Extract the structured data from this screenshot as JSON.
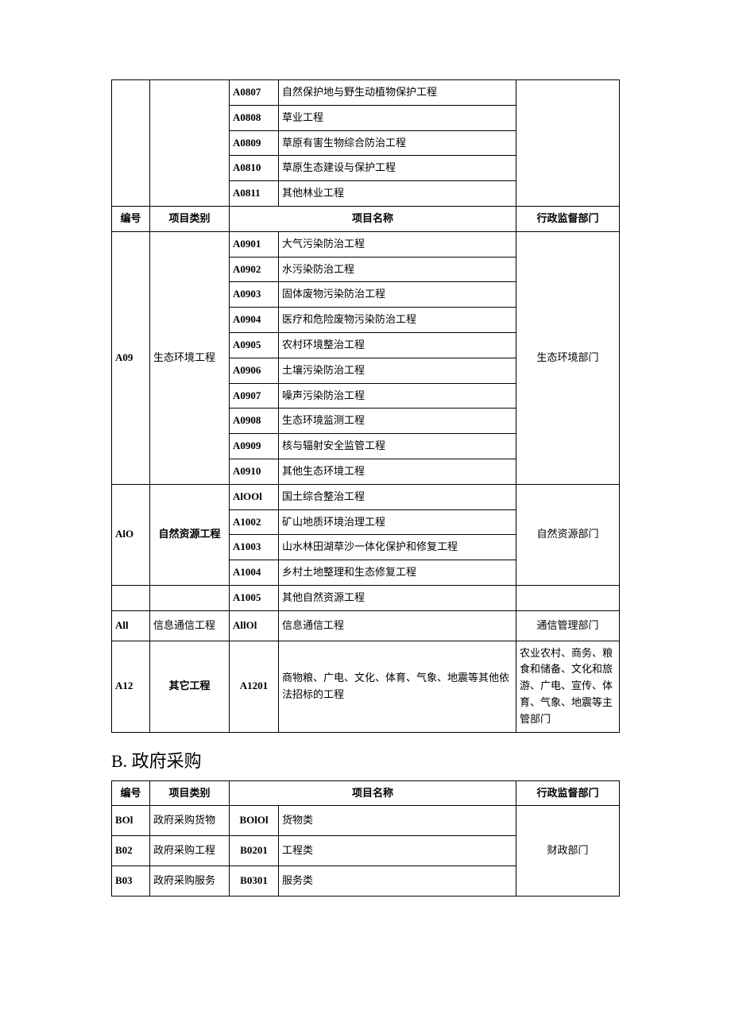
{
  "tableA_top": {
    "rows": [
      {
        "sub": "A0807",
        "name": "自然保护地与野生动植物保护工程"
      },
      {
        "sub": "A0808",
        "name": "草业工程"
      },
      {
        "sub": "A0809",
        "name": "草原有害生物综合防治工程"
      },
      {
        "sub": "A0810",
        "name": "草原生态建设与保护工程"
      },
      {
        "sub": "A0811",
        "name": "其他林业工程"
      }
    ]
  },
  "headerA": {
    "col1": "编号",
    "col2": "项目类别",
    "col3": "项目名称",
    "col4": "行政监督部门"
  },
  "a09": {
    "code": "A09",
    "cat": "生态环境工程",
    "dept": "生态环境部门",
    "rows": [
      {
        "sub": "A0901",
        "name": "大气污染防治工程"
      },
      {
        "sub": "A0902",
        "name": "水污染防治工程"
      },
      {
        "sub": "A0903",
        "name": "固体废物污染防治工程"
      },
      {
        "sub": "A0904",
        "name": "医疗和危险废物污染防治工程"
      },
      {
        "sub": "A0905",
        "name": "农村环境整治工程"
      },
      {
        "sub": "A0906",
        "name": "土壤污染防治工程"
      },
      {
        "sub": "A0907",
        "name": "噪声污染防治工程"
      },
      {
        "sub": "A0908",
        "name": "生态环境监测工程"
      },
      {
        "sub": "A0909",
        "name": "核与辐射安全监管工程"
      },
      {
        "sub": "A0910",
        "name": "其他生态环境工程"
      }
    ]
  },
  "a10": {
    "code": "AlO",
    "cat": "自然资源工程",
    "dept": "自然资源部门",
    "rows": [
      {
        "sub": "AlOOl",
        "name": "国土综合整治工程"
      },
      {
        "sub": "A1002",
        "name": "矿山地质环境治理工程"
      },
      {
        "sub": "A1003",
        "name": "山水林田湖草沙一体化保护和修复工程"
      },
      {
        "sub": "A1004",
        "name": "乡村土地整理和生态修复工程"
      }
    ],
    "extra": {
      "sub": "A1005",
      "name": "其他自然资源工程"
    }
  },
  "a11": {
    "code": "All",
    "cat": "信息通信工程",
    "dept": "通信管理部门",
    "row": {
      "sub": "AllOl",
      "name": "信息通信工程"
    }
  },
  "a12": {
    "code": "A12",
    "cat": "其它工程",
    "dept": "农业农村、商务、粮食和储备、文化和旅游、广电、宣传、体育、气象、地震等主管部门",
    "row": {
      "sub": "A1201",
      "name": "商物粮、广电、文化、体育、气象、地震等其他依法招标的工程"
    }
  },
  "sectionB_title": "B. 政府采购",
  "headerB": {
    "col1": "编号",
    "col2": "项目类别",
    "col3": "项目名称",
    "col4": "行政监督部门"
  },
  "tableB": {
    "dept": "财政部门",
    "rows": [
      {
        "code": "BOl",
        "cat": "政府采购货物",
        "sub": "BOlOl",
        "name": "货物类"
      },
      {
        "code": "B02",
        "cat": "政府采购工程",
        "sub": "B0201",
        "name": "工程类"
      },
      {
        "code": "B03",
        "cat": "政府采购服务",
        "sub": "B0301",
        "name": "服务类"
      }
    ]
  }
}
